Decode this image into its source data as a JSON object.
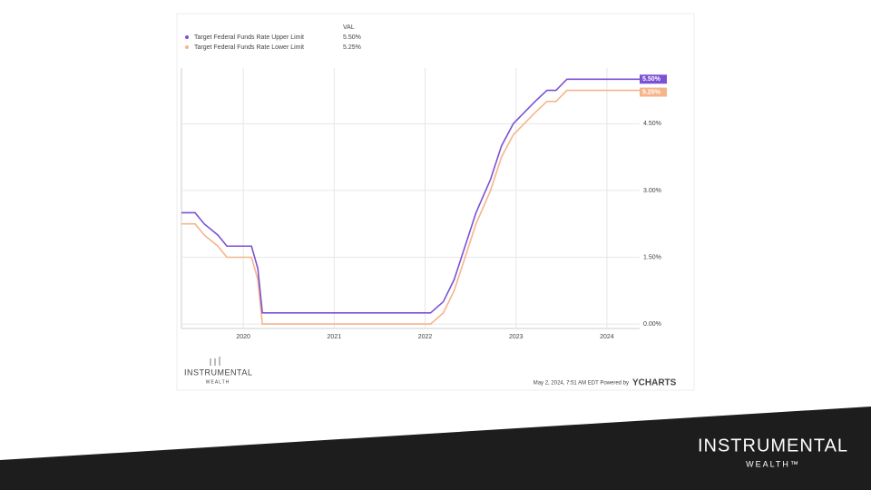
{
  "chart_data": {
    "type": "line",
    "legend_header": "VAL",
    "x": [
      2019.32,
      2019.47,
      2019.57,
      2019.72,
      2019.82,
      2020.09,
      2020.16,
      2020.21,
      2022.06,
      2022.2,
      2022.32,
      2022.44,
      2022.56,
      2022.72,
      2022.84,
      2022.97,
      2023.09,
      2023.21,
      2023.34,
      2023.44,
      2023.56,
      2024.36
    ],
    "series": [
      {
        "name": "Target Federal Funds Rate Upper Limit",
        "color": "#7b52d4",
        "end_label": "5.50%",
        "values": [
          2.5,
          2.5,
          2.25,
          2.0,
          1.75,
          1.75,
          1.25,
          0.25,
          0.25,
          0.5,
          1.0,
          1.75,
          2.5,
          3.25,
          4.0,
          4.5,
          4.75,
          5.0,
          5.25,
          5.25,
          5.5,
          5.5
        ]
      },
      {
        "name": "Target Federal Funds Rate Lower Limit",
        "color": "#f6b48b",
        "end_label": "5.25%",
        "values": [
          2.25,
          2.25,
          2.0,
          1.75,
          1.5,
          1.5,
          1.0,
          0,
          0,
          0.25,
          0.75,
          1.5,
          2.25,
          3.0,
          3.75,
          4.25,
          4.5,
          4.75,
          5.0,
          5.0,
          5.25,
          5.25
        ]
      }
    ],
    "xlim": [
      2019.32,
      2024.36
    ],
    "xticks": [
      2020,
      2021,
      2022,
      2023,
      2024
    ],
    "ylim": [
      -0.1,
      5.75
    ],
    "yticks": [
      {
        "value": 0,
        "label": "0.00%"
      },
      {
        "value": 1.5,
        "label": "1.50%"
      },
      {
        "value": 3,
        "label": "3.00%"
      },
      {
        "value": 4.5,
        "label": "4.50%"
      }
    ],
    "grid": true,
    "timestamp": "May 2, 2024, 7:51 AM EDT Powered by",
    "source": "YCHARTS"
  },
  "chart_logo": {
    "name": "INSTRUMENTAL",
    "tagline": "WEALTH"
  },
  "slide_logo": {
    "name": "INSTRUMENTAL",
    "tagline": "WEALTH™"
  }
}
